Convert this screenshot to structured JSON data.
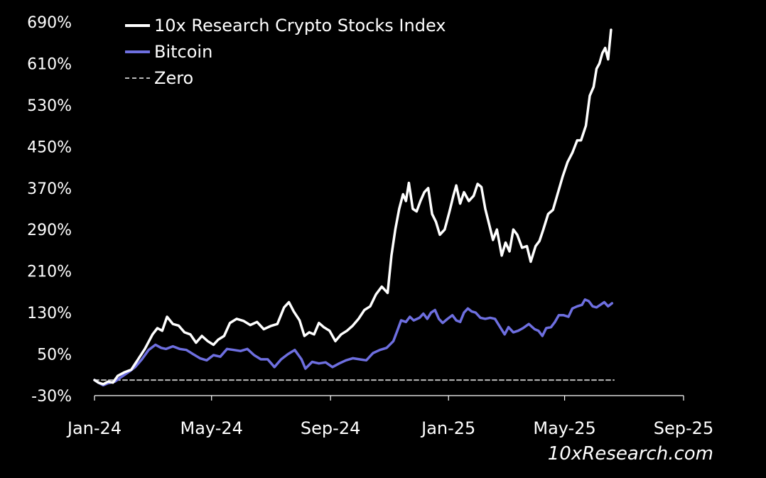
{
  "chart_data": {
    "type": "line",
    "title": "",
    "xlabel": "",
    "ylabel": "",
    "ylim": [
      -30,
      690
    ],
    "xlim": [
      "2024-01-01",
      "2025-09-01"
    ],
    "y_ticks": [
      "690%",
      "610%",
      "530%",
      "450%",
      "370%",
      "290%",
      "210%",
      "130%",
      "50%",
      "-30%"
    ],
    "x_ticks": [
      "Jan-24",
      "May-24",
      "Sep-24",
      "Jan-25",
      "May-25",
      "Sep-25"
    ],
    "legend_position": "top-left",
    "grid": false,
    "legend": [
      {
        "label": "10x Research Crypto Stocks Index",
        "color": "#ffffff",
        "style": "solid"
      },
      {
        "label": "Bitcoin",
        "color": "#6e6fe0",
        "style": "solid"
      },
      {
        "label": "Zero",
        "color": "#bbbbbb",
        "style": "dashed"
      }
    ],
    "series": [
      {
        "name": "10x Research Crypto Stocks Index",
        "color": "#ffffff",
        "points": [
          [
            "2024-01-01",
            0
          ],
          [
            "2024-01-05",
            -5
          ],
          [
            "2024-01-10",
            -8
          ],
          [
            "2024-01-15",
            -3
          ],
          [
            "2024-01-20",
            -5
          ],
          [
            "2024-01-25",
            8
          ],
          [
            "2024-02-01",
            15
          ],
          [
            "2024-02-08",
            20
          ],
          [
            "2024-02-15",
            40
          ],
          [
            "2024-02-22",
            60
          ],
          [
            "2024-03-01",
            88
          ],
          [
            "2024-03-06",
            100
          ],
          [
            "2024-03-11",
            95
          ],
          [
            "2024-03-16",
            122
          ],
          [
            "2024-03-22",
            108
          ],
          [
            "2024-03-28",
            105
          ],
          [
            "2024-04-03",
            92
          ],
          [
            "2024-04-09",
            88
          ],
          [
            "2024-04-15",
            72
          ],
          [
            "2024-04-21",
            85
          ],
          [
            "2024-04-27",
            75
          ],
          [
            "2024-05-03",
            68
          ],
          [
            "2024-05-08",
            78
          ],
          [
            "2024-05-14",
            85
          ],
          [
            "2024-05-20",
            110
          ],
          [
            "2024-05-27",
            118
          ],
          [
            "2024-06-03",
            114
          ],
          [
            "2024-06-10",
            106
          ],
          [
            "2024-06-17",
            112
          ],
          [
            "2024-06-24",
            98
          ],
          [
            "2024-07-01",
            104
          ],
          [
            "2024-07-08",
            108
          ],
          [
            "2024-07-15",
            140
          ],
          [
            "2024-07-20",
            150
          ],
          [
            "2024-07-25",
            132
          ],
          [
            "2024-07-31",
            115
          ],
          [
            "2024-08-05",
            85
          ],
          [
            "2024-08-10",
            92
          ],
          [
            "2024-08-15",
            88
          ],
          [
            "2024-08-20",
            110
          ],
          [
            "2024-08-25",
            102
          ],
          [
            "2024-08-31",
            95
          ],
          [
            "2024-09-06",
            75
          ],
          [
            "2024-09-12",
            88
          ],
          [
            "2024-09-18",
            95
          ],
          [
            "2024-09-24",
            105
          ],
          [
            "2024-09-30",
            118
          ],
          [
            "2024-10-06",
            135
          ],
          [
            "2024-10-12",
            142
          ],
          [
            "2024-10-18",
            165
          ],
          [
            "2024-10-24",
            180
          ],
          [
            "2024-10-30",
            168
          ],
          [
            "2024-11-03",
            240
          ],
          [
            "2024-11-07",
            290
          ],
          [
            "2024-11-11",
            330
          ],
          [
            "2024-11-15",
            358
          ],
          [
            "2024-11-18",
            345
          ],
          [
            "2024-11-21",
            380
          ],
          [
            "2024-11-25",
            330
          ],
          [
            "2024-11-29",
            325
          ],
          [
            "2024-12-03",
            345
          ],
          [
            "2024-12-07",
            362
          ],
          [
            "2024-12-11",
            370
          ],
          [
            "2024-12-15",
            320
          ],
          [
            "2024-12-19",
            305
          ],
          [
            "2024-12-23",
            280
          ],
          [
            "2024-12-28",
            290
          ],
          [
            "2025-01-02",
            325
          ],
          [
            "2025-01-06",
            355
          ],
          [
            "2025-01-09",
            375
          ],
          [
            "2025-01-13",
            340
          ],
          [
            "2025-01-17",
            362
          ],
          [
            "2025-01-22",
            345
          ],
          [
            "2025-01-27",
            355
          ],
          [
            "2025-01-31",
            378
          ],
          [
            "2025-02-04",
            372
          ],
          [
            "2025-02-08",
            330
          ],
          [
            "2025-02-12",
            300
          ],
          [
            "2025-02-16",
            270
          ],
          [
            "2025-02-20",
            290
          ],
          [
            "2025-02-25",
            240
          ],
          [
            "2025-03-01",
            265
          ],
          [
            "2025-03-05",
            248
          ],
          [
            "2025-03-09",
            290
          ],
          [
            "2025-03-13",
            280
          ],
          [
            "2025-03-18",
            255
          ],
          [
            "2025-03-23",
            258
          ],
          [
            "2025-03-27",
            228
          ],
          [
            "2025-04-01",
            258
          ],
          [
            "2025-04-05",
            268
          ],
          [
            "2025-04-09",
            290
          ],
          [
            "2025-04-14",
            320
          ],
          [
            "2025-04-19",
            328
          ],
          [
            "2025-04-24",
            360
          ],
          [
            "2025-04-29",
            392
          ],
          [
            "2025-05-04",
            420
          ],
          [
            "2025-05-09",
            438
          ],
          [
            "2025-05-14",
            462
          ],
          [
            "2025-05-18",
            462
          ],
          [
            "2025-05-23",
            490
          ],
          [
            "2025-05-27",
            548
          ],
          [
            "2025-05-31",
            565
          ],
          [
            "2025-06-03",
            600
          ],
          [
            "2025-06-06",
            610
          ],
          [
            "2025-06-09",
            630
          ],
          [
            "2025-06-12",
            640
          ],
          [
            "2025-06-15",
            618
          ],
          [
            "2025-06-18",
            675
          ]
        ]
      },
      {
        "name": "Bitcoin",
        "color": "#6e6fe0",
        "points": [
          [
            "2024-01-01",
            0
          ],
          [
            "2024-01-05",
            -5
          ],
          [
            "2024-01-10",
            -10
          ],
          [
            "2024-01-15",
            -6
          ],
          [
            "2024-01-22",
            -3
          ],
          [
            "2024-01-28",
            5
          ],
          [
            "2024-02-05",
            15
          ],
          [
            "2024-02-12",
            25
          ],
          [
            "2024-02-19",
            40
          ],
          [
            "2024-02-26",
            58
          ],
          [
            "2024-03-04",
            68
          ],
          [
            "2024-03-10",
            62
          ],
          [
            "2024-03-15",
            60
          ],
          [
            "2024-03-22",
            65
          ],
          [
            "2024-03-29",
            60
          ],
          [
            "2024-04-05",
            58
          ],
          [
            "2024-04-12",
            50
          ],
          [
            "2024-04-19",
            42
          ],
          [
            "2024-04-26",
            38
          ],
          [
            "2024-05-03",
            48
          ],
          [
            "2024-05-10",
            45
          ],
          [
            "2024-05-17",
            60
          ],
          [
            "2024-05-24",
            58
          ],
          [
            "2024-05-31",
            56
          ],
          [
            "2024-06-07",
            60
          ],
          [
            "2024-06-14",
            48
          ],
          [
            "2024-06-21",
            40
          ],
          [
            "2024-06-28",
            40
          ],
          [
            "2024-07-05",
            25
          ],
          [
            "2024-07-12",
            40
          ],
          [
            "2024-07-19",
            50
          ],
          [
            "2024-07-26",
            58
          ],
          [
            "2024-08-02",
            40
          ],
          [
            "2024-08-06",
            22
          ],
          [
            "2024-08-13",
            35
          ],
          [
            "2024-08-20",
            32
          ],
          [
            "2024-08-27",
            34
          ],
          [
            "2024-09-03",
            25
          ],
          [
            "2024-09-10",
            32
          ],
          [
            "2024-09-17",
            38
          ],
          [
            "2024-09-24",
            42
          ],
          [
            "2024-10-01",
            40
          ],
          [
            "2024-10-08",
            38
          ],
          [
            "2024-10-15",
            52
          ],
          [
            "2024-10-22",
            58
          ],
          [
            "2024-10-29",
            62
          ],
          [
            "2024-11-05",
            75
          ],
          [
            "2024-11-09",
            95
          ],
          [
            "2024-11-13",
            115
          ],
          [
            "2024-11-18",
            112
          ],
          [
            "2024-11-22",
            122
          ],
          [
            "2024-11-26",
            115
          ],
          [
            "2024-12-02",
            120
          ],
          [
            "2024-12-06",
            128
          ],
          [
            "2024-12-10",
            118
          ],
          [
            "2024-12-14",
            130
          ],
          [
            "2024-12-18",
            135
          ],
          [
            "2024-12-22",
            118
          ],
          [
            "2024-12-26",
            110
          ],
          [
            "2024-12-31",
            118
          ],
          [
            "2025-01-05",
            125
          ],
          [
            "2025-01-09",
            115
          ],
          [
            "2025-01-13",
            112
          ],
          [
            "2025-01-17",
            130
          ],
          [
            "2025-01-21",
            138
          ],
          [
            "2025-01-25",
            132
          ],
          [
            "2025-01-29",
            130
          ],
          [
            "2025-02-03",
            120
          ],
          [
            "2025-02-08",
            118
          ],
          [
            "2025-02-13",
            120
          ],
          [
            "2025-02-18",
            118
          ],
          [
            "2025-02-24",
            100
          ],
          [
            "2025-02-28",
            88
          ],
          [
            "2025-03-04",
            102
          ],
          [
            "2025-03-09",
            92
          ],
          [
            "2025-03-14",
            95
          ],
          [
            "2025-03-19",
            100
          ],
          [
            "2025-03-25",
            108
          ],
          [
            "2025-03-31",
            98
          ],
          [
            "2025-04-04",
            95
          ],
          [
            "2025-04-08",
            85
          ],
          [
            "2025-04-12",
            100
          ],
          [
            "2025-04-17",
            102
          ],
          [
            "2025-04-21",
            112
          ],
          [
            "2025-04-25",
            125
          ],
          [
            "2025-04-30",
            125
          ],
          [
            "2025-05-05",
            122
          ],
          [
            "2025-05-09",
            138
          ],
          [
            "2025-05-14",
            142
          ],
          [
            "2025-05-19",
            145
          ],
          [
            "2025-05-22",
            155
          ],
          [
            "2025-05-26",
            152
          ],
          [
            "2025-05-30",
            142
          ],
          [
            "2025-06-03",
            140
          ],
          [
            "2025-06-07",
            145
          ],
          [
            "2025-06-11",
            150
          ],
          [
            "2025-06-15",
            142
          ],
          [
            "2025-06-19",
            148
          ]
        ]
      },
      {
        "name": "Zero",
        "color": "#bbbbbb",
        "points": [
          [
            "2024-01-01",
            0
          ],
          [
            "2025-06-21",
            0
          ]
        ]
      }
    ]
  },
  "watermark": "10xResearch.com"
}
